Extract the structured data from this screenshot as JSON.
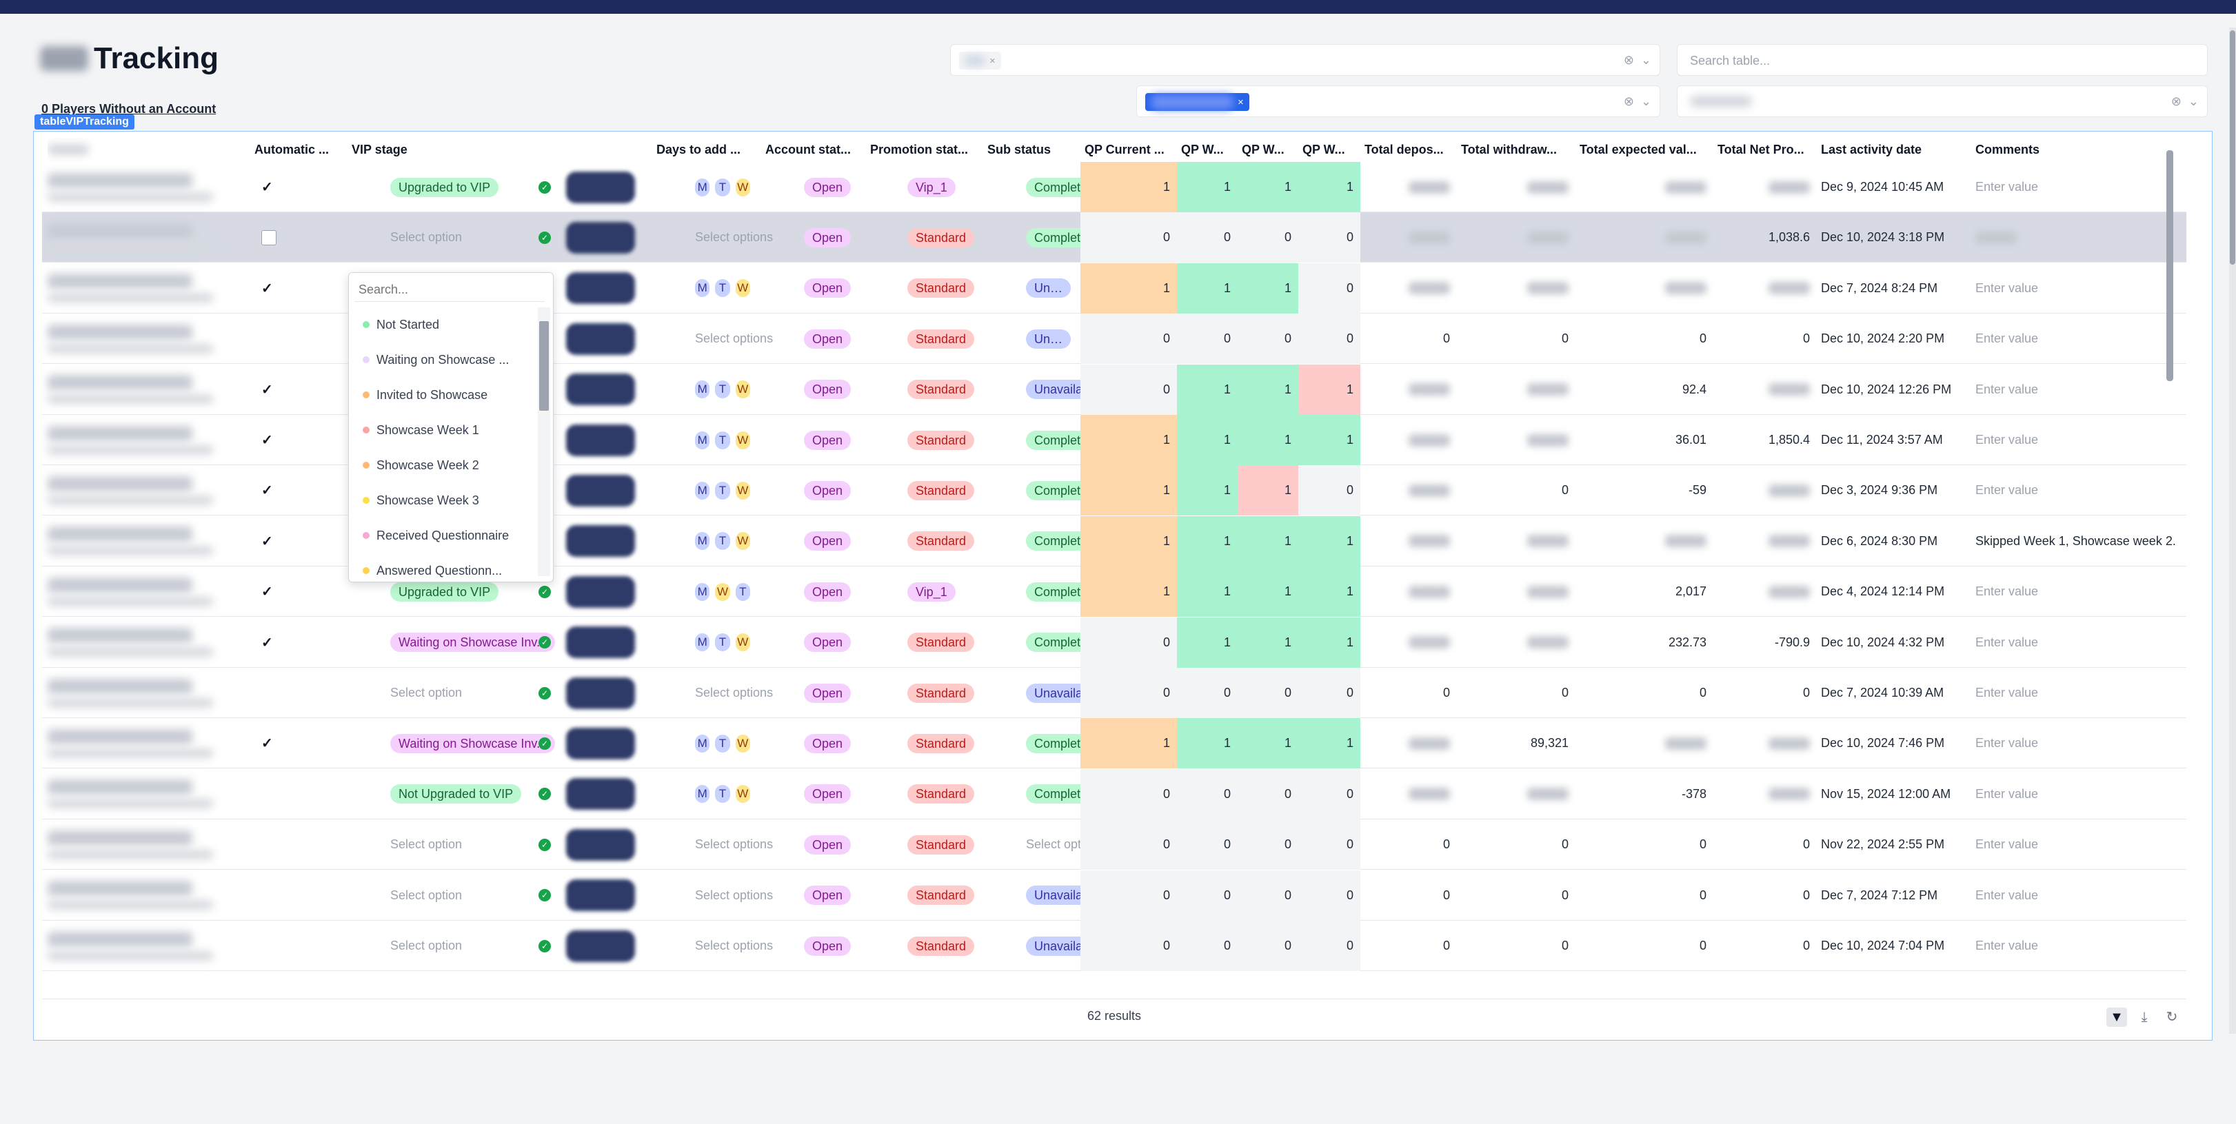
{
  "page": {
    "title": "Tracking",
    "players_without_account": "0 Players Without an Account",
    "component_tag": "tableVIPTracking"
  },
  "filters": {
    "search_placeholder": "Search table...",
    "clear_icon": "clear-circle-icon",
    "chevron_icon": "chevron-down-icon"
  },
  "table": {
    "columns": {
      "automatic": "Automatic ...",
      "vip_stage": "VIP stage",
      "days": "Days to add ...",
      "account_status": "Account stat...",
      "promotion_status": "Promotion stat...",
      "sub_status": "Sub status",
      "qp_current": "QP Current ...",
      "qp_w1": "QP W...",
      "qp_w2": "QP W...",
      "qp_w3": "QP W...",
      "total_deposits": "Total depos...",
      "total_withdrawals": "Total withdraw...",
      "total_expected": "Total expected val...",
      "total_net": "Total Net Pro...",
      "last_activity": "Last activity date",
      "comments": "Comments"
    },
    "rows": [
      {
        "auto": "✓",
        "vip": "Upgraded to VIP",
        "vip_color": "green",
        "days": [
          "M",
          "T",
          "W"
        ],
        "acct": "Open",
        "promo": "Vip_1",
        "promo_color": "purple",
        "sub": "Completed",
        "sub_color": "green",
        "qp": [
          1,
          1,
          1,
          1
        ],
        "qp_bg": [
          "orange",
          "green",
          "green",
          "green"
        ],
        "dep": "",
        "wd": "",
        "exp": "",
        "net": "",
        "date": "Dec 9, 2024 10:45 AM",
        "comment": "Enter value"
      },
      {
        "auto": "box",
        "vip": "Select option",
        "vip_color": "",
        "days": [],
        "acct": "Open",
        "promo": "Standard",
        "promo_color": "red",
        "sub": "Completed",
        "sub_color": "green",
        "qp": [
          0,
          0,
          0,
          0
        ],
        "qp_bg": [
          "",
          "",
          "",
          ""
        ],
        "dep": "",
        "wd": "",
        "exp": "",
        "net": "1,038.6",
        "date": "Dec 10, 2024 3:18 PM",
        "comment": ""
      },
      {
        "auto": "✓",
        "vip": "",
        "vip_color": "",
        "days": [
          "M",
          "T",
          "W"
        ],
        "acct": "Open",
        "promo": "Standard",
        "promo_color": "red",
        "sub": "Un…",
        "sub_color": "blue",
        "qp": [
          1,
          1,
          1,
          0
        ],
        "qp_bg": [
          "orange",
          "green",
          "green",
          ""
        ],
        "dep": "",
        "wd": "",
        "exp": "",
        "net": "",
        "date": "Dec 7, 2024 8:24 PM",
        "comment": "Enter value"
      },
      {
        "auto": "",
        "vip": "",
        "vip_color": "",
        "days": [],
        "acct": "Open",
        "promo": "Standard",
        "promo_color": "red",
        "sub": "Un…",
        "sub_color": "blue",
        "qp": [
          0,
          0,
          0,
          0
        ],
        "qp_bg": [
          "",
          "",
          "",
          ""
        ],
        "dep": "0",
        "wd": "0",
        "exp": "0",
        "net": "0",
        "date": "Dec 10, 2024 2:20 PM",
        "comment": "Enter value"
      },
      {
        "auto": "✓",
        "vip": "",
        "vip_color": "",
        "days": [
          "M",
          "T",
          "W"
        ],
        "acct": "Open",
        "promo": "Standard",
        "promo_color": "red",
        "sub": "Unavaila...",
        "sub_color": "blue",
        "qp": [
          0,
          1,
          1,
          1
        ],
        "qp_bg": [
          "",
          "green",
          "green",
          "pink"
        ],
        "dep": "",
        "wd": "",
        "exp": "92.4",
        "net": "",
        "date": "Dec 10, 2024 12:26 PM",
        "comment": "Enter value"
      },
      {
        "auto": "✓",
        "vip": "",
        "vip_color": "",
        "days": [
          "M",
          "T",
          "W"
        ],
        "acct": "Open",
        "promo": "Standard",
        "promo_color": "red",
        "sub": "Completed",
        "sub_color": "green",
        "qp": [
          1,
          1,
          1,
          1
        ],
        "qp_bg": [
          "orange",
          "green",
          "green",
          "green"
        ],
        "dep": "",
        "wd": "",
        "exp": "36.01",
        "net": "1,850.4",
        "date": "Dec 11, 2024 3:57 AM",
        "comment": "Enter value"
      },
      {
        "auto": "✓",
        "vip": "",
        "vip_color": "",
        "days": [
          "M",
          "T",
          "W"
        ],
        "acct": "Open",
        "promo": "Standard",
        "promo_color": "red",
        "sub": "Completed",
        "sub_color": "green",
        "qp": [
          1,
          1,
          1,
          0
        ],
        "qp_bg": [
          "orange",
          "green",
          "pink",
          ""
        ],
        "dep": "",
        "wd": "0",
        "exp": "-59",
        "net": "",
        "date": "Dec 3, 2024 9:36 PM",
        "comment": "Enter value"
      },
      {
        "auto": "✓",
        "vip": "",
        "vip_color": "",
        "days": [
          "M",
          "T",
          "W"
        ],
        "acct": "Open",
        "promo": "Standard",
        "promo_color": "red",
        "sub": "Completed",
        "sub_color": "green",
        "qp": [
          1,
          1,
          1,
          1
        ],
        "qp_bg": [
          "orange",
          "green",
          "green",
          "green"
        ],
        "dep": "",
        "wd": "",
        "exp": "",
        "net": "",
        "date": "Dec 6, 2024 8:30 PM",
        "comment": "Skipped Week 1, Showcase week 2."
      },
      {
        "auto": "✓",
        "vip": "Upgraded to VIP",
        "vip_color": "green",
        "days": [
          "M",
          "W",
          "T"
        ],
        "acct": "Open",
        "promo": "Vip_1",
        "promo_color": "purple",
        "sub": "Completed",
        "sub_color": "green",
        "qp": [
          1,
          1,
          1,
          1
        ],
        "qp_bg": [
          "orange",
          "green",
          "green",
          "green"
        ],
        "dep": "",
        "wd": "",
        "exp": "2,017",
        "net": "",
        "date": "Dec 4, 2024 12:14 PM",
        "comment": "Enter value"
      },
      {
        "auto": "✓",
        "vip": "Waiting on Showcase Inv...",
        "vip_color": "purple",
        "days": [
          "M",
          "T",
          "W"
        ],
        "acct": "Open",
        "promo": "Standard",
        "promo_color": "red",
        "sub": "Completed",
        "sub_color": "green",
        "qp": [
          0,
          1,
          1,
          1
        ],
        "qp_bg": [
          "",
          "green",
          "green",
          "green"
        ],
        "dep": "",
        "wd": "",
        "exp": "232.73",
        "net": "-790.9",
        "date": "Dec 10, 2024 4:32 PM",
        "comment": "Enter value"
      },
      {
        "auto": "",
        "vip": "Select option",
        "vip_color": "",
        "days": [],
        "acct": "Open",
        "promo": "Standard",
        "promo_color": "red",
        "sub": "Unavaila...",
        "sub_color": "blue",
        "qp": [
          0,
          0,
          0,
          0
        ],
        "qp_bg": [
          "",
          "",
          "",
          ""
        ],
        "dep": "0",
        "wd": "0",
        "exp": "0",
        "net": "0",
        "date": "Dec 7, 2024 10:39 AM",
        "comment": "Enter value"
      },
      {
        "auto": "✓",
        "vip": "Waiting on Showcase Inv...",
        "vip_color": "purple",
        "days": [
          "M",
          "T",
          "W"
        ],
        "acct": "Open",
        "promo": "Standard",
        "promo_color": "red",
        "sub": "Completed",
        "sub_color": "green",
        "qp": [
          1,
          1,
          1,
          1
        ],
        "qp_bg": [
          "orange",
          "green",
          "green",
          "green"
        ],
        "dep": "",
        "wd": "89,321",
        "exp": "",
        "net": "",
        "date": "Dec 10, 2024 7:46 PM",
        "comment": "Enter value"
      },
      {
        "auto": "",
        "vip": "Not Upgraded to VIP",
        "vip_color": "green",
        "days": [
          "M",
          "T",
          "W"
        ],
        "acct": "Open",
        "promo": "Standard",
        "promo_color": "red",
        "sub": "Completed",
        "sub_color": "green",
        "qp": [
          0,
          0,
          0,
          0
        ],
        "qp_bg": [
          "",
          "",
          "",
          ""
        ],
        "dep": "",
        "wd": "",
        "exp": "-378",
        "net": "",
        "date": "Nov 15, 2024 12:00 AM",
        "comment": "Enter value"
      },
      {
        "auto": "",
        "vip": "Select option",
        "vip_color": "",
        "days": [],
        "acct": "Open",
        "promo": "Standard",
        "promo_color": "red",
        "sub": "Select option",
        "sub_color": "",
        "qp": [
          0,
          0,
          0,
          0
        ],
        "qp_bg": [
          "",
          "",
          "",
          ""
        ],
        "dep": "0",
        "wd": "0",
        "exp": "0",
        "net": "0",
        "date": "Nov 22, 2024 2:55 PM",
        "comment": "Enter value"
      },
      {
        "auto": "",
        "vip": "Select option",
        "vip_color": "",
        "days": [],
        "acct": "Open",
        "promo": "Standard",
        "promo_color": "red",
        "sub": "Unavaila...",
        "sub_color": "blue",
        "qp": [
          0,
          0,
          0,
          0
        ],
        "qp_bg": [
          "",
          "",
          "",
          ""
        ],
        "dep": "0",
        "wd": "0",
        "exp": "0",
        "net": "0",
        "date": "Dec 7, 2024 7:12 PM",
        "comment": "Enter value"
      },
      {
        "auto": "",
        "vip": "Select option",
        "vip_color": "",
        "days": [],
        "acct": "Open",
        "promo": "Standard",
        "promo_color": "red",
        "sub": "Unavaila...",
        "sub_color": "blue",
        "qp": [
          0,
          0,
          0,
          0
        ],
        "qp_bg": [
          "",
          "",
          "",
          ""
        ],
        "dep": "0",
        "wd": "0",
        "exp": "0",
        "net": "0",
        "date": "Dec 10, 2024 7:04 PM",
        "comment": "Enter value"
      }
    ],
    "days_placeholder": "Select options",
    "select_option": "Select option"
  },
  "dropdown": {
    "search_placeholder": "Search...",
    "options": [
      {
        "label": "Not Started",
        "color": "#86efac"
      },
      {
        "label": "Waiting on Showcase ...",
        "color": "#e9d5ff"
      },
      {
        "label": "Invited to Showcase",
        "color": "#fdba74"
      },
      {
        "label": "Showcase Week 1",
        "color": "#fca5a5"
      },
      {
        "label": "Showcase Week 2",
        "color": "#fdba74"
      },
      {
        "label": "Showcase Week 3",
        "color": "#fde047"
      },
      {
        "label": "Received Questionnaire",
        "color": "#f9a8d4"
      },
      {
        "label": "Answered Questionn...",
        "color": "#fcd34d"
      }
    ]
  },
  "footer": {
    "results": "62 results",
    "filter_icon": "filter-icon",
    "download_icon": "download-icon",
    "refresh_icon": "refresh-icon"
  }
}
